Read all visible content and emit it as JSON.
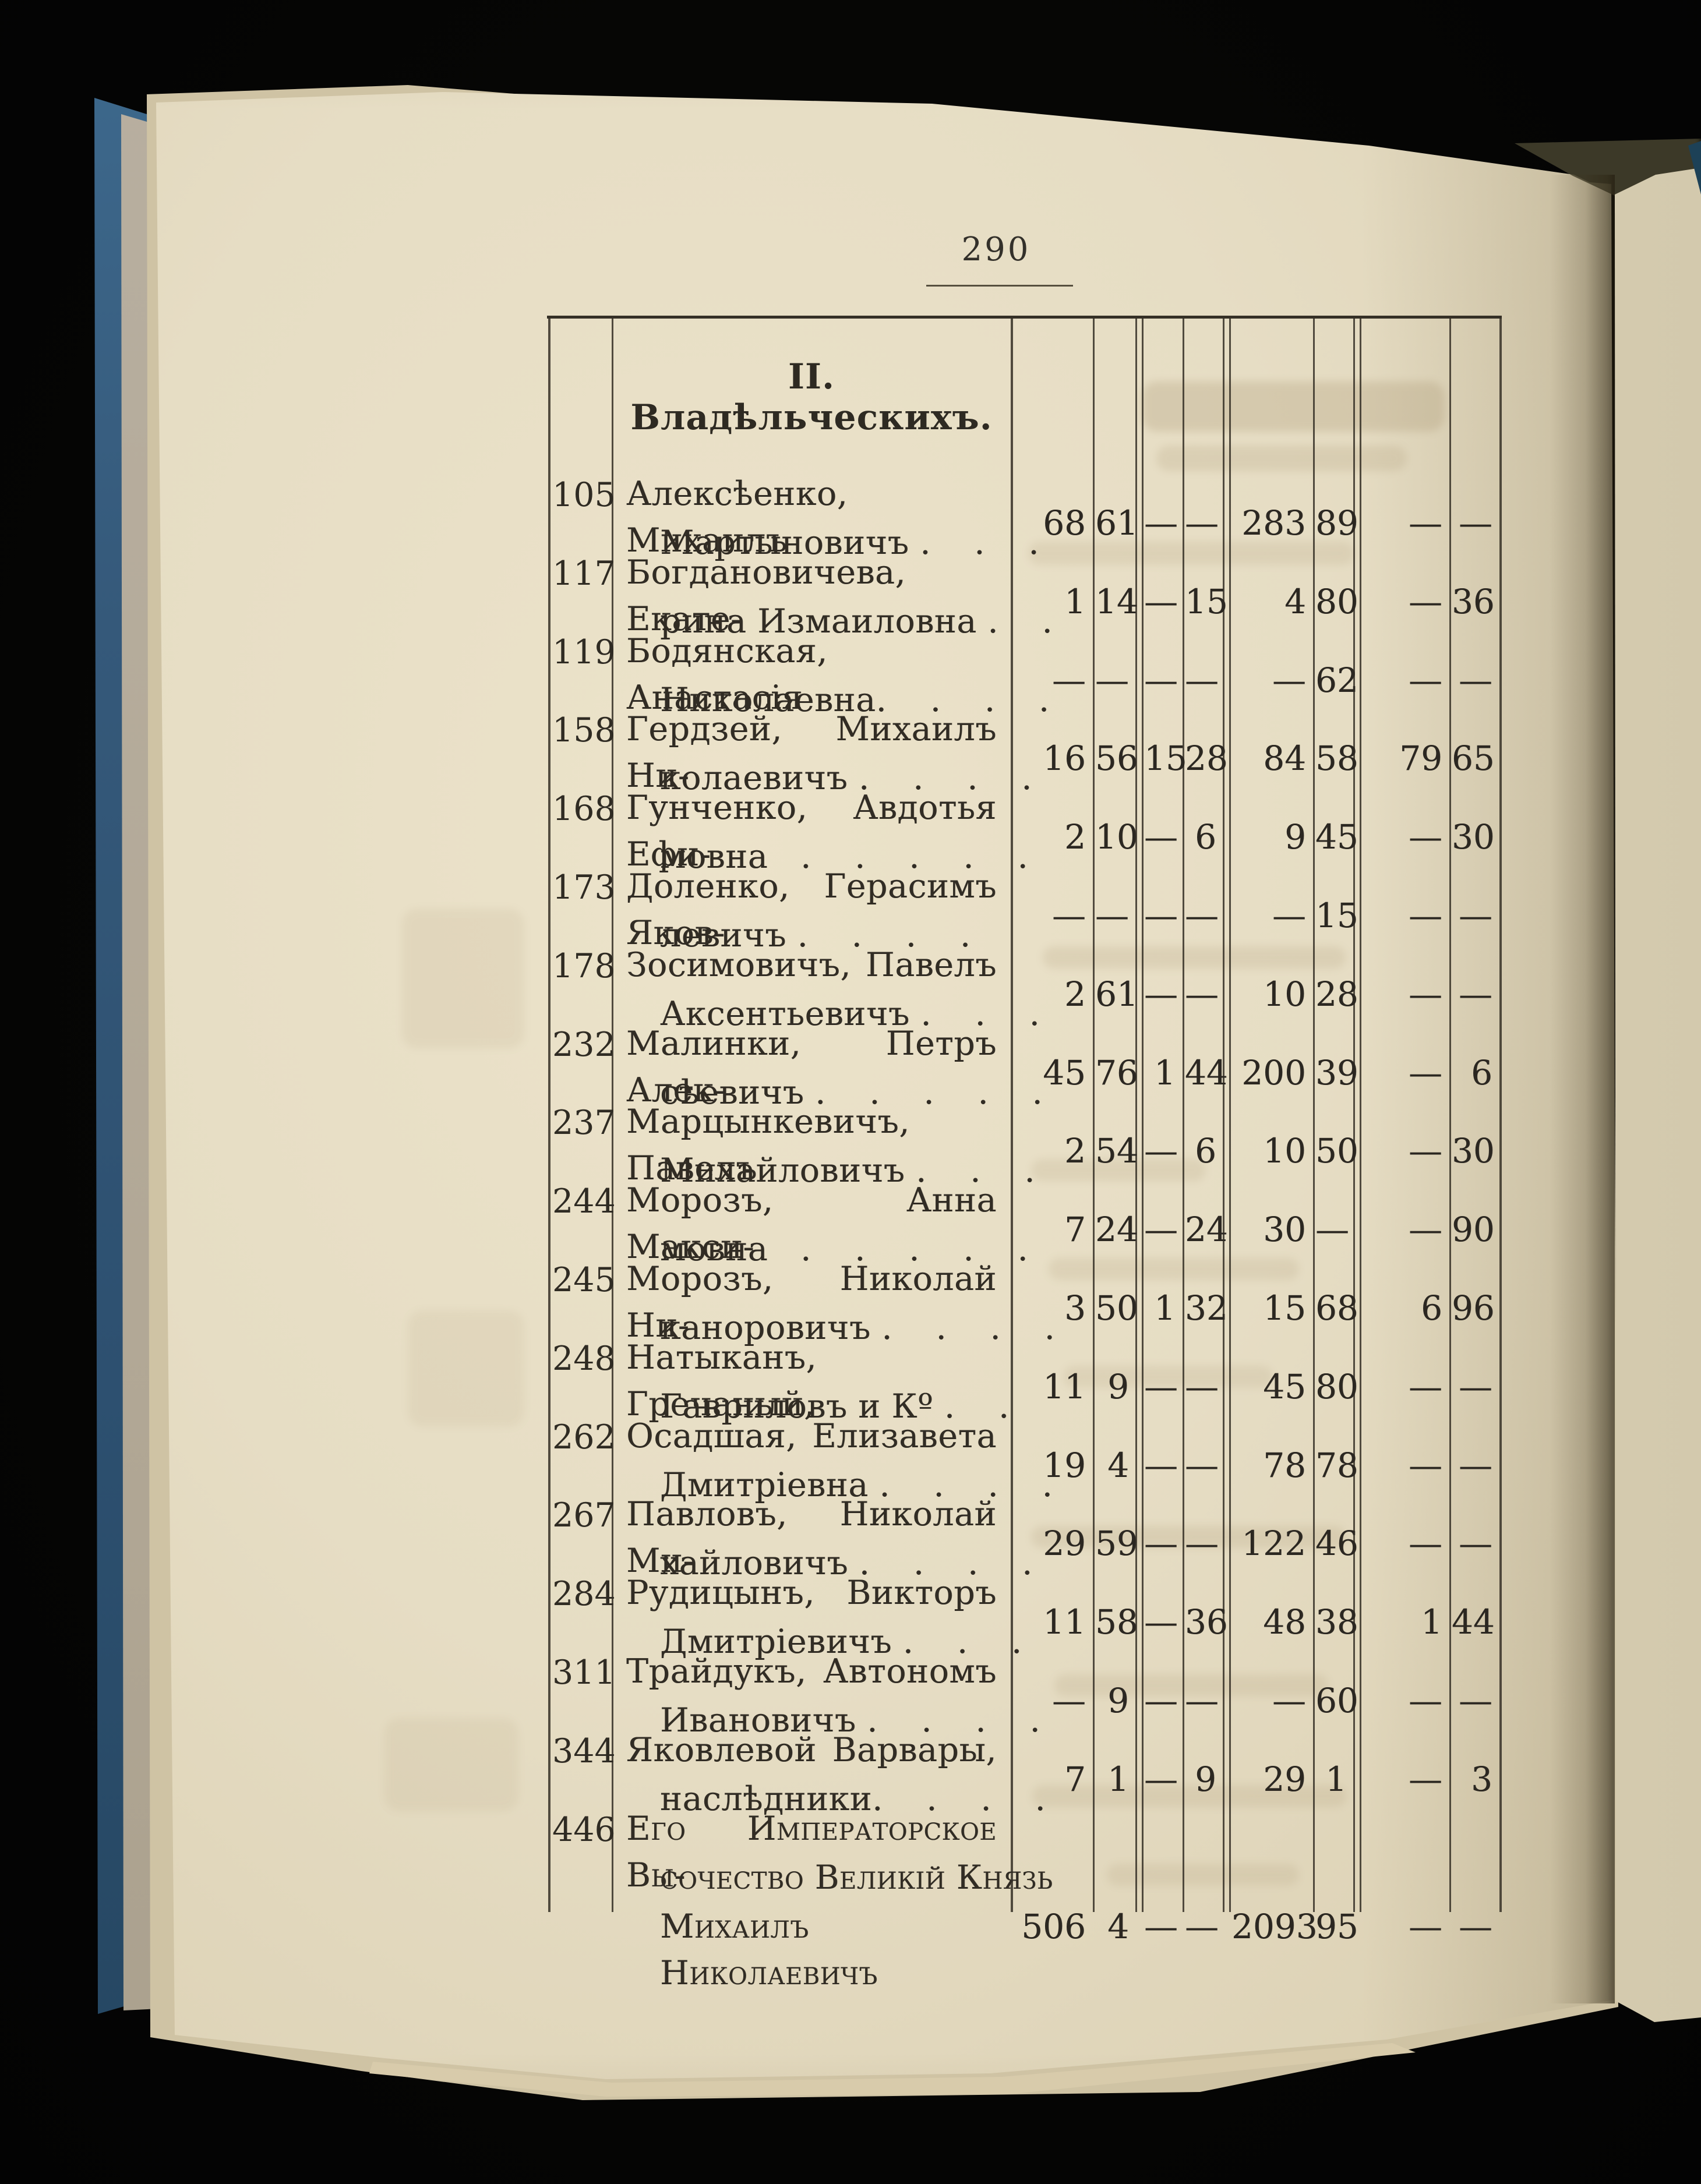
{
  "folio": "290",
  "heading": "II. Владѣльческихъ.",
  "colors": {
    "background": "#050504",
    "page": "#e6ddc4",
    "cover_blue": "#35597a",
    "ink": "#2e2a22",
    "rule": "#3b352b"
  },
  "table": {
    "rows": [
      {
        "no": "105",
        "name_lines": [
          "Алексѣенко, Михаилъ",
          "Мартыновичъ .    .    ."
        ],
        "values": [
          "68",
          "61",
          "—",
          "—",
          "283",
          "89",
          "—",
          "—"
        ]
      },
      {
        "no": "117",
        "name_lines": [
          "Богдановичева, Екате-",
          "рина Измаиловна .    ."
        ],
        "values": [
          "1",
          "14",
          "—",
          "15",
          "4",
          "80",
          "—",
          "36"
        ]
      },
      {
        "no": "119",
        "name_lines": [
          "Бодянская, Анастасія",
          "Николаевна.    .    .    ."
        ],
        "values": [
          "—",
          "—",
          "—",
          "—",
          "—",
          "62",
          "—",
          "—"
        ]
      },
      {
        "no": "158",
        "name_lines": [
          "Гердзей, Михаилъ Ни-",
          "колаевичъ .    .    .    ."
        ],
        "values": [
          "16",
          "56",
          "15",
          "28",
          "84",
          "58",
          "79",
          "65"
        ]
      },
      {
        "no": "168",
        "name_lines": [
          "Гунченко, Авдотья Ефи-",
          "мовна   .    .    .    .    ."
        ],
        "values": [
          "2",
          "10",
          "—",
          "6",
          "9",
          "45",
          "—",
          "30"
        ]
      },
      {
        "no": "173",
        "name_lines": [
          "Доленко, Герасимъ Яков-",
          "левичъ .    .    .    ."
        ],
        "values": [
          "—",
          "—",
          "—",
          "—",
          "—",
          "15",
          "—",
          "—"
        ]
      },
      {
        "no": "178",
        "name_lines": [
          "Зосимовичъ, Павелъ",
          "Аксентьевичъ .    .    ."
        ],
        "values": [
          "2",
          "61",
          "—",
          "—",
          "10",
          "28",
          "—",
          "—"
        ]
      },
      {
        "no": "232",
        "name_lines": [
          "Малинки, Петръ Алек-",
          "сѣевичъ .    .    .    .    ."
        ],
        "values": [
          "45",
          "76",
          "1",
          "44",
          "200",
          "39",
          "—",
          "6"
        ]
      },
      {
        "no": "237",
        "name_lines": [
          "Марцынкевичъ, Павелъ",
          "Михайловичъ .    .    ."
        ],
        "values": [
          "2",
          "54",
          "—",
          "6",
          "10",
          "50",
          "—",
          "30"
        ]
      },
      {
        "no": "244",
        "name_lines": [
          "Морозъ, Анна Макси-",
          "мовна   .    .    .    .    ."
        ],
        "values": [
          "7",
          "24",
          "—",
          "24",
          "30",
          "—",
          "—",
          "90"
        ]
      },
      {
        "no": "245",
        "name_lines": [
          "Морозъ, Николай Ни-",
          "каноровичъ .    .    .    ."
        ],
        "values": [
          "3",
          "50",
          "1",
          "32",
          "15",
          "68",
          "6",
          "96"
        ]
      },
      {
        "no": "248",
        "name_lines": [
          "Натыканъ, Гречаный,",
          "Гавриловъ и Кº .    ."
        ],
        "values": [
          "11",
          "9",
          "—",
          "—",
          "45",
          "80",
          "—",
          "—"
        ]
      },
      {
        "no": "262",
        "name_lines": [
          "Осадшая, Елизавета",
          "Дмитріевна .    .    .    ."
        ],
        "values": [
          "19",
          "4",
          "—",
          "—",
          "78",
          "78",
          "—",
          "—"
        ]
      },
      {
        "no": "267",
        "name_lines": [
          "Павловъ, Николай Ми-",
          "хайловичъ .    .    .    ."
        ],
        "values": [
          "29",
          "59",
          "—",
          "—",
          "122",
          "46",
          "—",
          "—"
        ]
      },
      {
        "no": "284",
        "name_lines": [
          "Рудицынъ, Викторъ",
          "Дмитріевичъ .    .    ."
        ],
        "values": [
          "11",
          "58",
          "—",
          "36",
          "48",
          "38",
          "1",
          "44"
        ]
      },
      {
        "no": "311",
        "name_lines": [
          "Трайдукъ, Автономъ",
          "Ивановичъ .    .    .    ."
        ],
        "values": [
          "—",
          "9",
          "—",
          "—",
          "—",
          "60",
          "—",
          "—"
        ]
      },
      {
        "no": "344",
        "name_lines": [
          "Яковлевой Варвары,",
          "наслѣдники.    .    .    ."
        ],
        "values": [
          "7",
          "1",
          "—",
          "9",
          "29",
          "1",
          "—",
          "3"
        ]
      },
      {
        "no": "446",
        "name_lines": [
          "Его Императорское Вы-",
          "сочество Великій Князь",
          "Михаилъ Николаевичъ"
        ],
        "small_caps": true,
        "values": [
          "506",
          "4",
          "—",
          "—",
          "2093",
          "95",
          "—",
          "—"
        ]
      }
    ]
  }
}
